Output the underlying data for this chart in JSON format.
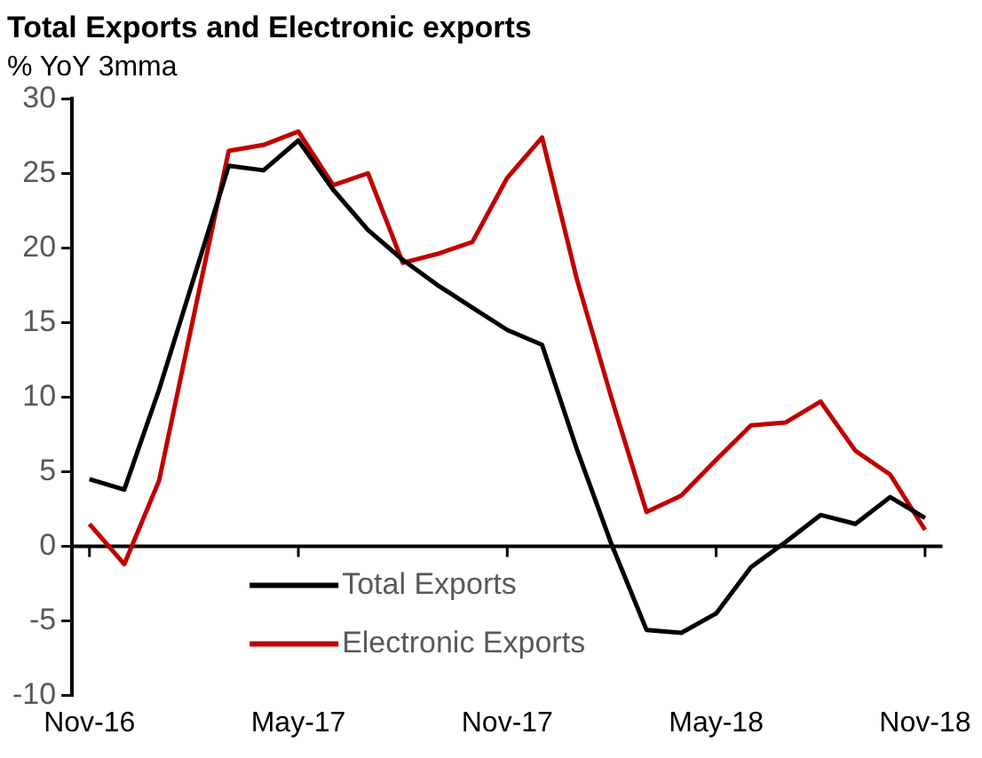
{
  "chart_data": {
    "type": "line",
    "title": "Total Exports and Electronic exports",
    "subtitle": "% YoY 3mma",
    "categories": [
      "Nov-16",
      null,
      null,
      null,
      null,
      null,
      "May-17",
      null,
      null,
      null,
      null,
      null,
      "Nov-17",
      null,
      null,
      null,
      null,
      null,
      "May-18",
      null,
      null,
      null,
      null,
      null,
      "Nov-18"
    ],
    "series": [
      {
        "name": "Total Exports",
        "color": "#000000",
        "values": [
          4.5,
          3.8,
          10.5,
          18,
          25.5,
          25.2,
          27.2,
          23.9,
          21.2,
          19.2,
          17.5,
          16.0,
          14.5,
          13.5,
          6.5,
          0.1,
          -5.6,
          -5.8,
          -4.5,
          -1.4,
          0.3,
          2.1,
          1.5,
          3.3,
          1.9
        ]
      },
      {
        "name": "Electronic Exports",
        "color": "#c00000",
        "values": [
          1.5,
          -1.2,
          4.4,
          15.5,
          26.5,
          26.9,
          27.8,
          24.2,
          25.0,
          19.0,
          19.6,
          20.4,
          24.7,
          27.4,
          17.9,
          9.9,
          2.3,
          3.4,
          5.8,
          8.1,
          8.3,
          9.7,
          6.4,
          4.8,
          1.1
        ]
      }
    ],
    "ylim": [
      -10,
      30
    ],
    "yticks": [
      -10,
      -5,
      0,
      5,
      10,
      15,
      20,
      25,
      30
    ],
    "legend": "bottom",
    "marker": "none",
    "line_style": "solid"
  }
}
